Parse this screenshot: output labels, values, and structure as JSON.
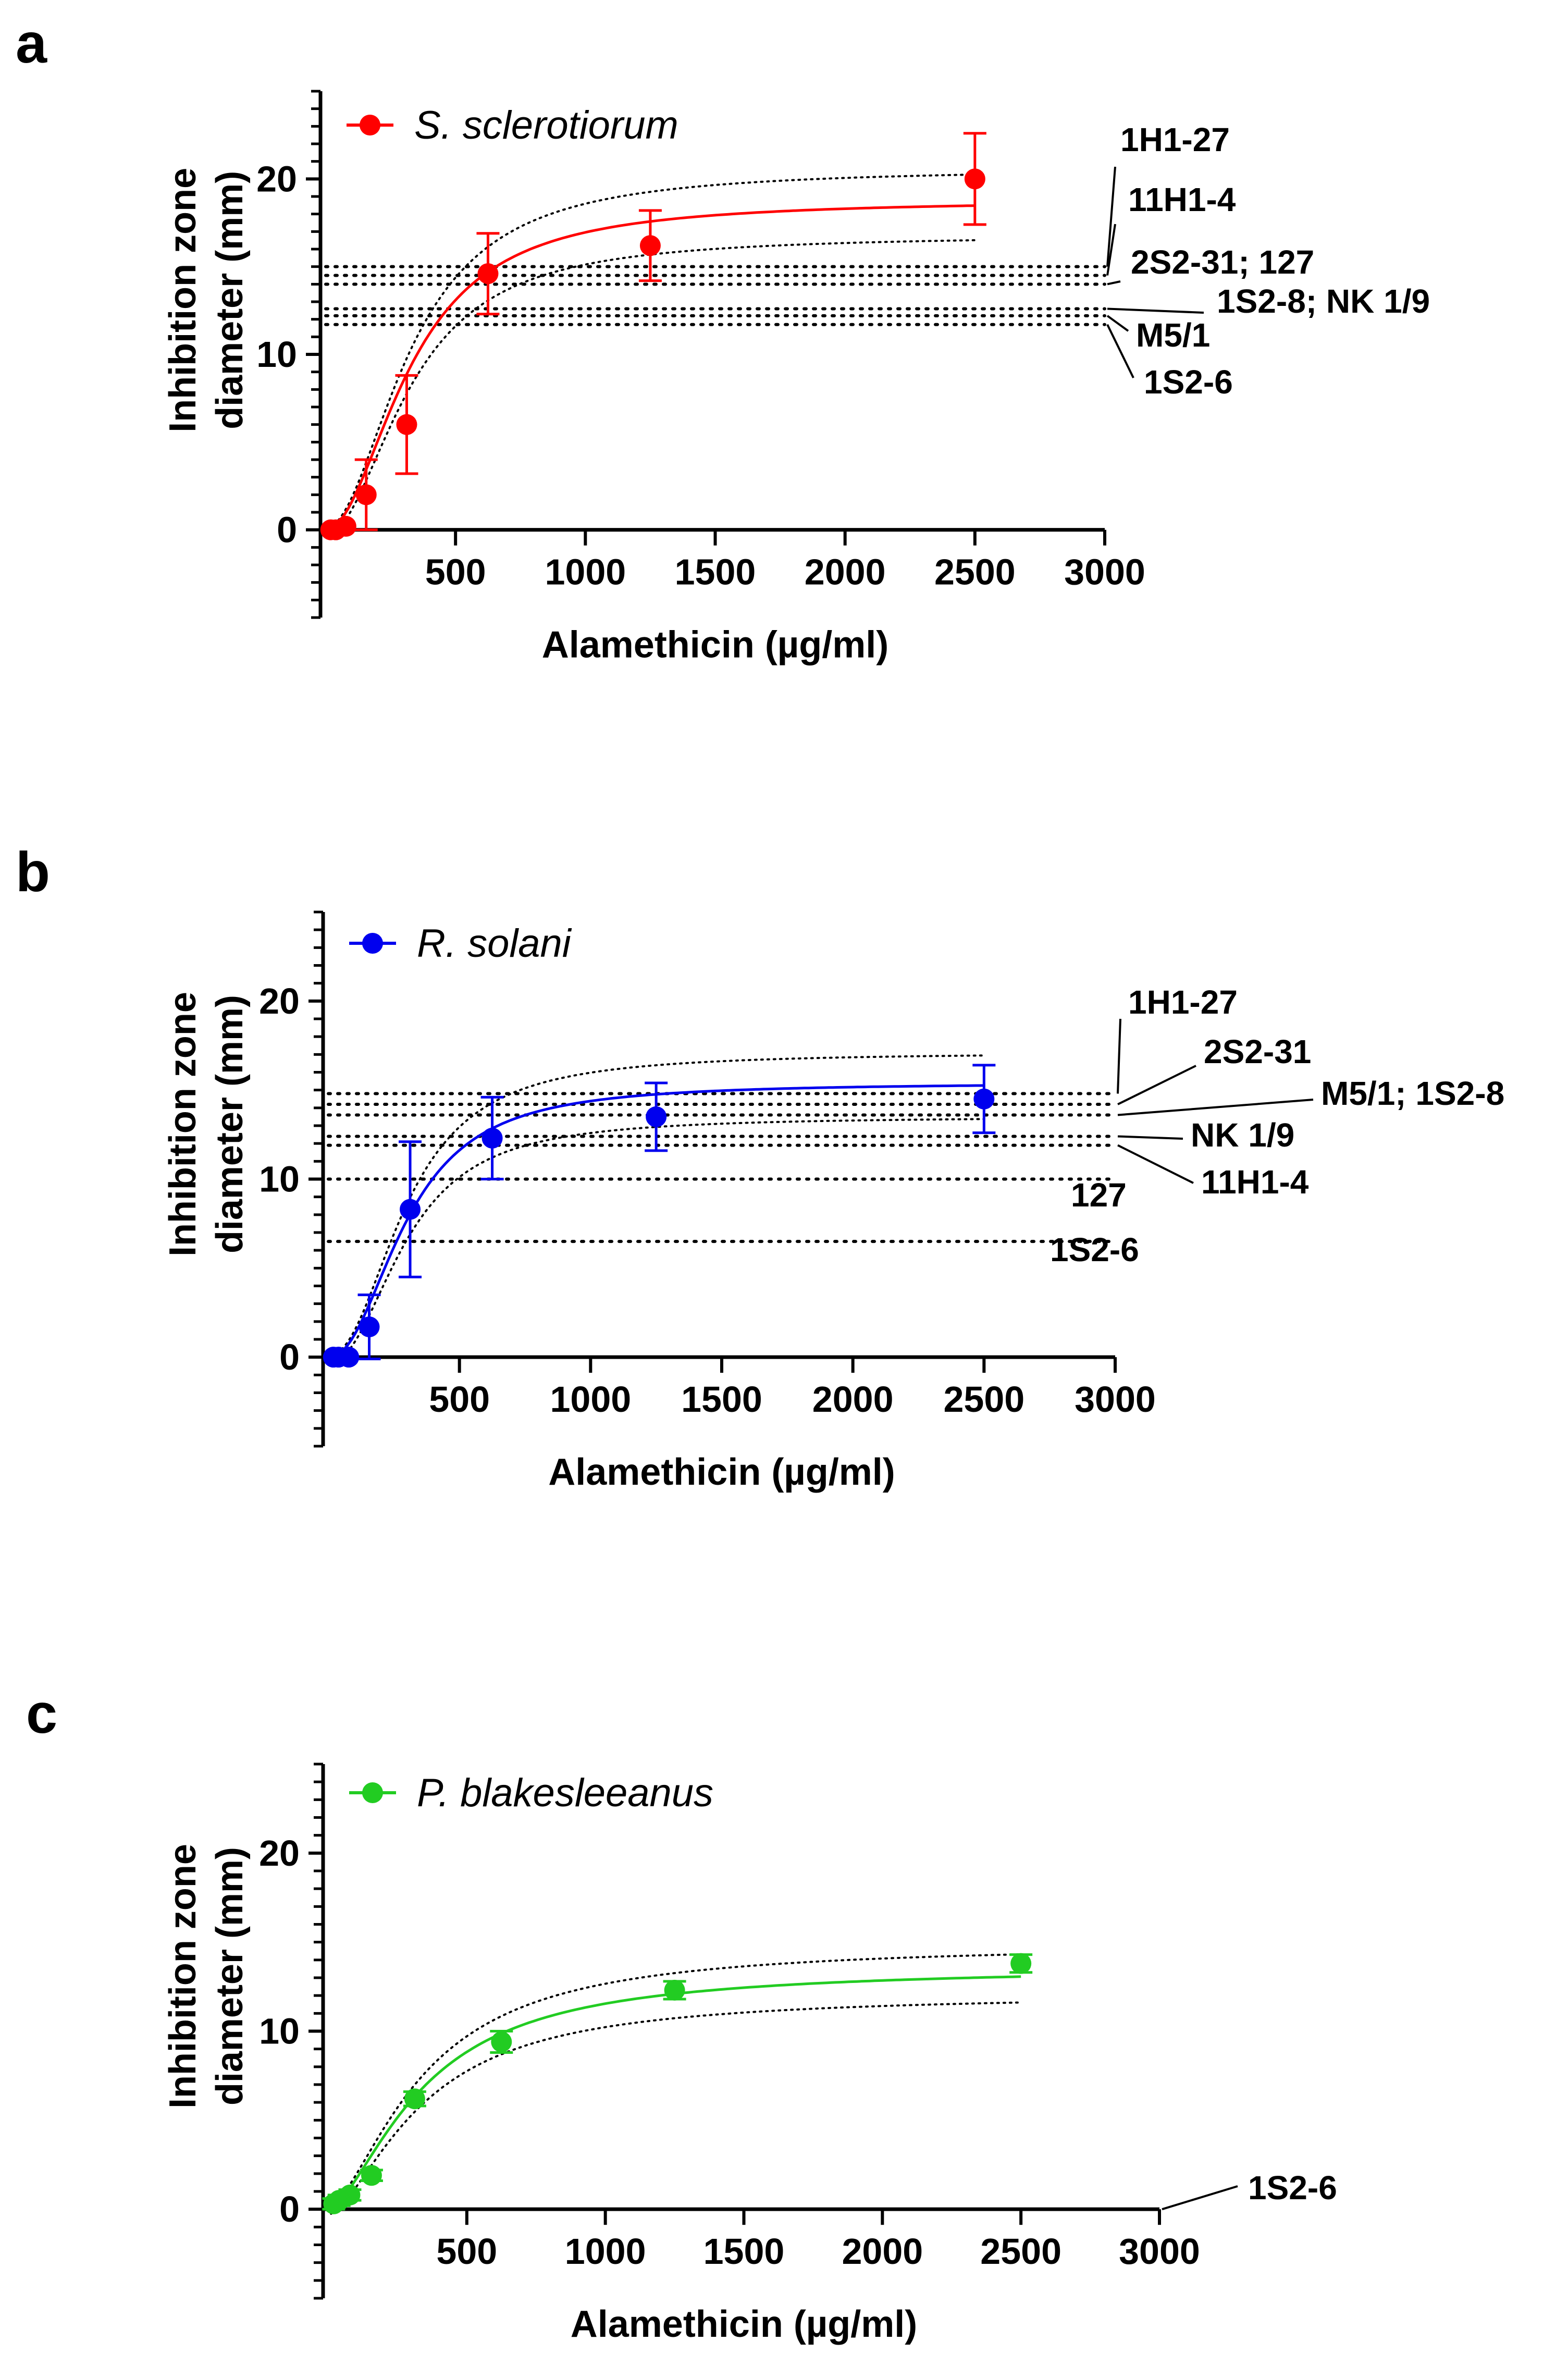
{
  "figure": {
    "panels": [
      "a",
      "b",
      "c"
    ]
  },
  "chart_data": [
    {
      "panel_label": "a",
      "type": "scatter",
      "xlabel": "Alamethicin (µg/ml)",
      "ylabel_lines": [
        "Inhibition zone",
        "diameter (mm)"
      ],
      "xlim": [
        0,
        3000
      ],
      "ylim": [
        -5,
        25
      ],
      "x_ticks": [
        500,
        1000,
        1500,
        2000,
        2500,
        3000
      ],
      "y_ticks": [
        0,
        10,
        20
      ],
      "color": "#ff0000",
      "series": [
        {
          "name": "S. sclerotiorum",
          "x": [
            19.5,
            39,
            78,
            156,
            312,
            625,
            1250,
            2500
          ],
          "y": [
            0,
            0,
            0.2,
            2.0,
            6.0,
            14.6,
            16.2,
            20.0
          ],
          "error": [
            0,
            0,
            0.2,
            2.0,
            2.8,
            2.3,
            2.0,
            2.6
          ],
          "fit": {
            "top": 18.8,
            "ec50": 330,
            "hill": 2.0
          },
          "ci_offset": [
            0.1,
            1.8
          ]
        }
      ],
      "ref_lines": [
        {
          "y": 15.0,
          "label": "1H1-27"
        },
        {
          "y": 14.5,
          "label": "11H1-4"
        },
        {
          "y": 14.0,
          "label": "2S2-31; 127"
        },
        {
          "y": 12.6,
          "label": "1S2-8; NK 1/9"
        },
        {
          "y": 12.2,
          "label": "M5/1"
        },
        {
          "y": 11.7,
          "label": "1S2-6"
        }
      ]
    },
    {
      "panel_label": "b",
      "type": "scatter",
      "xlabel": "Alamethicin (µg/ml)",
      "ylabel_lines": [
        "Inhibition zone",
        "diameter (mm)"
      ],
      "xlim": [
        0,
        3000
      ],
      "ylim": [
        -5,
        25
      ],
      "x_ticks": [
        500,
        1000,
        1500,
        2000,
        2500,
        3000
      ],
      "y_ticks": [
        0,
        10,
        20
      ],
      "color": "#0000ee",
      "series": [
        {
          "name": "R. solani",
          "x": [
            19.5,
            39,
            78,
            156,
            312,
            625,
            1250,
            2500
          ],
          "y": [
            0,
            0,
            0,
            1.7,
            8.3,
            12.3,
            13.5,
            14.5
          ],
          "error": [
            0,
            0,
            0,
            1.8,
            3.8,
            2.3,
            1.9,
            1.9
          ],
          "fit": {
            "top": 15.4,
            "ec50": 300,
            "hill": 2.2
          },
          "ci_offset": [
            0.1,
            1.7
          ]
        }
      ],
      "ref_lines": [
        {
          "y": 14.8,
          "label": "1H1-27"
        },
        {
          "y": 14.2,
          "label": "2S2-31"
        },
        {
          "y": 13.6,
          "label": "M5/1; 1S2-8"
        },
        {
          "y": 12.4,
          "label": "NK 1/9"
        },
        {
          "y": 11.9,
          "label": "11H1-4"
        },
        {
          "y": 10.0,
          "label": "127"
        },
        {
          "y": 6.5,
          "label": "1S2-6"
        }
      ]
    },
    {
      "panel_label": "c",
      "type": "scatter",
      "xlabel": "Alamethicin (µg/ml)",
      "ylabel_lines": [
        "Inhibition zone",
        "diameter (mm)"
      ],
      "xlim": [
        0,
        3000
      ],
      "ylim": [
        -5,
        25
      ],
      "x_ticks": [
        500,
        1000,
        1500,
        2000,
        2500,
        3000
      ],
      "y_ticks": [
        0,
        10,
        20
      ],
      "color": "#22cc22",
      "series": [
        {
          "name": "P. blakesleeanus",
          "x": [
            19.5,
            39,
            78,
            156,
            312,
            625,
            1250,
            2500
          ],
          "y": [
            0.3,
            0.5,
            0.8,
            1.9,
            6.2,
            9.4,
            12.3,
            13.8
          ],
          "error": [
            0.3,
            0.3,
            0.3,
            0.3,
            0.4,
            0.6,
            0.5,
            0.5
          ],
          "fit": {
            "top": 13.6,
            "ec50": 340,
            "hill": 1.6
          },
          "ci_offset": [
            0.1,
            1.3
          ]
        }
      ],
      "ref_lines": [
        {
          "y": 0.0,
          "label": "1S2-6"
        }
      ]
    }
  ]
}
